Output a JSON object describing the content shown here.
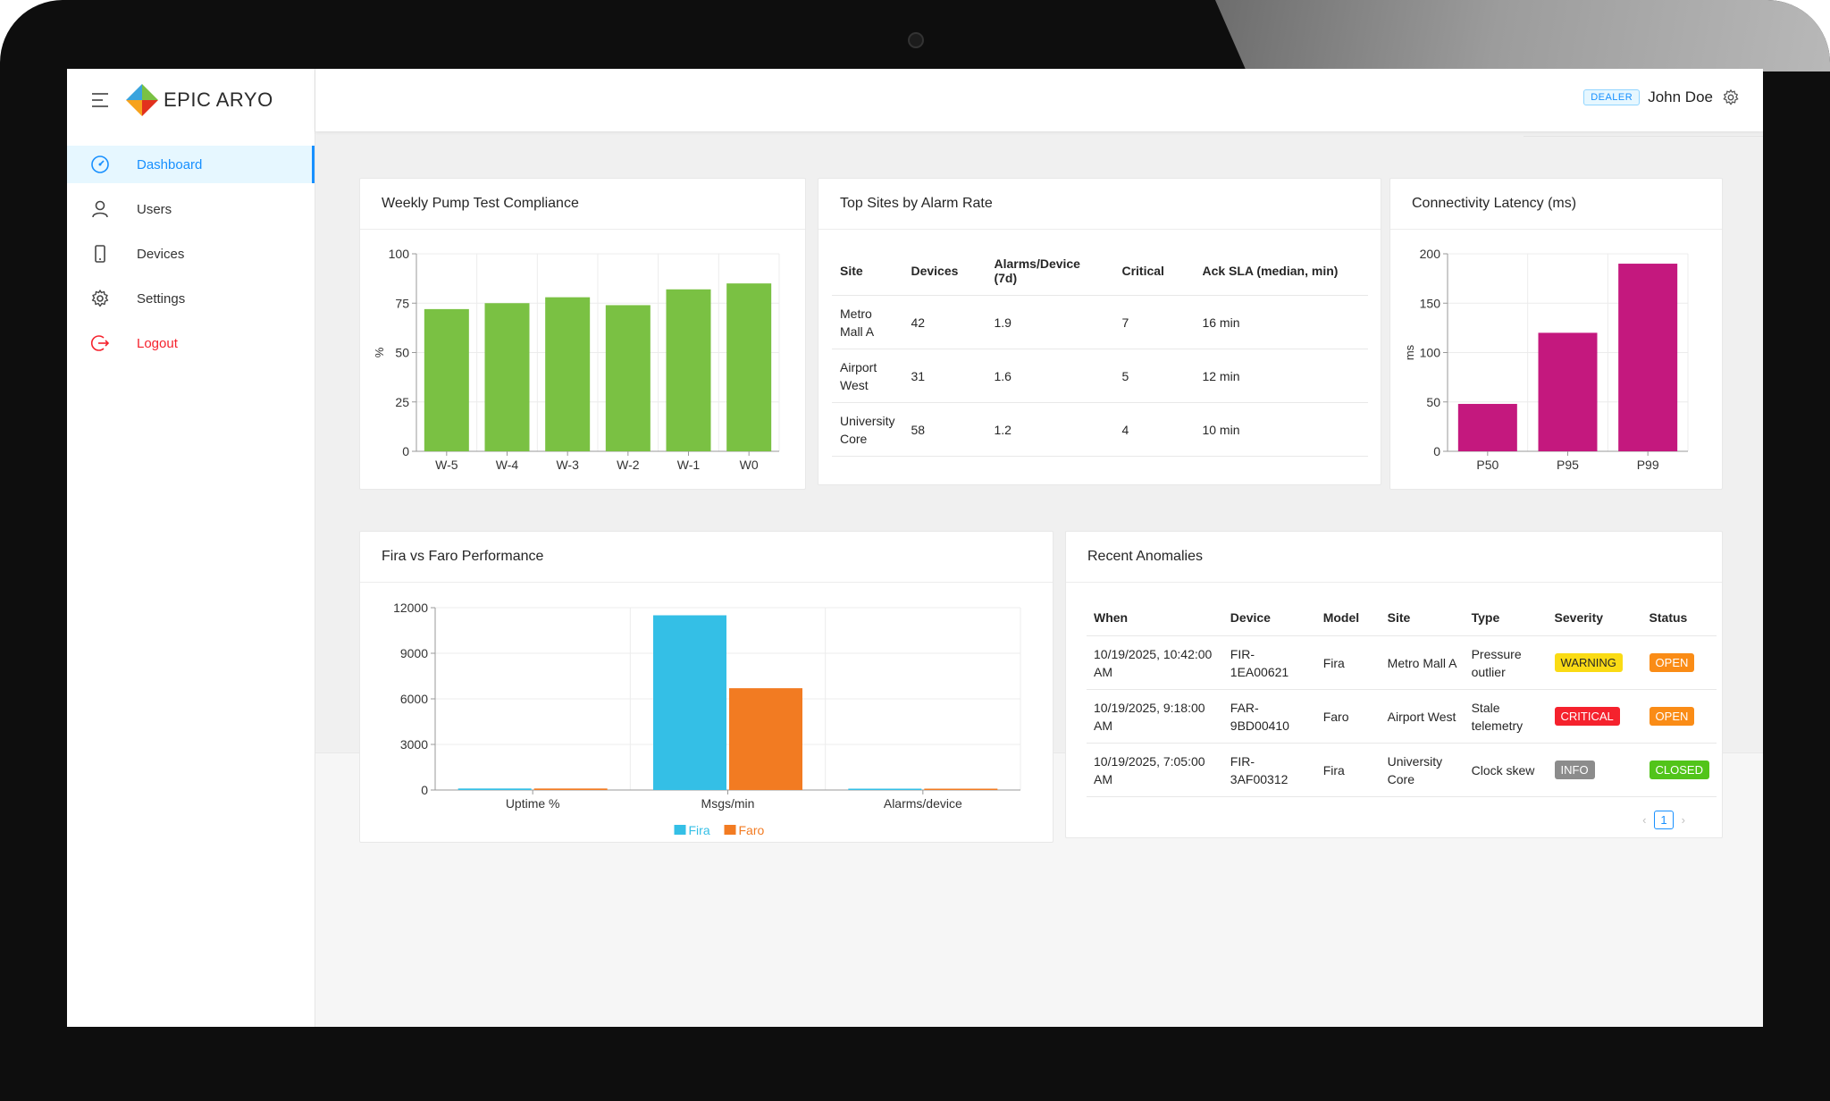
{
  "brand": {
    "name": "EPIC ARYO"
  },
  "sidebar": {
    "items": [
      {
        "label": "Dashboard",
        "icon": "dashboard-icon"
      },
      {
        "label": "Users",
        "icon": "user-icon"
      },
      {
        "label": "Devices",
        "icon": "device-icon"
      },
      {
        "label": "Settings",
        "icon": "gear-icon"
      },
      {
        "label": "Logout",
        "icon": "logout-icon"
      }
    ],
    "active": "Dashboard"
  },
  "header": {
    "role_badge": "DEALER",
    "user_name": "John Doe"
  },
  "colors": {
    "accent": "#1890ff",
    "green": "#7ac143",
    "magenta": "#c4187e",
    "fira": "#34bfe6",
    "faro": "#f27b22",
    "warning": "#fadb14",
    "critical": "#f5222d",
    "open": "#fa8c16",
    "info": "#8c8c8c",
    "closed": "#52c41a"
  },
  "cards": {
    "pump": {
      "title": "Weekly Pump Test Compliance"
    },
    "sites": {
      "title": "Top Sites by Alarm Rate"
    },
    "latency": {
      "title": "Connectivity Latency (ms)"
    },
    "fira": {
      "title": "Fira vs Faro Performance"
    },
    "anomalies": {
      "title": "Recent Anomalies"
    }
  },
  "sites_table": {
    "headers": [
      "Site",
      "Devices",
      "Alarms/Device (7d)",
      "Critical",
      "Ack SLA (median, min)"
    ],
    "rows": [
      [
        "Metro Mall A",
        "42",
        "1.9",
        "7",
        "16 min"
      ],
      [
        "Airport West",
        "31",
        "1.6",
        "5",
        "12 min"
      ],
      [
        "University Core",
        "58",
        "1.2",
        "4",
        "10 min"
      ]
    ]
  },
  "anomalies_table": {
    "headers": [
      "When",
      "Device",
      "Model",
      "Site",
      "Type",
      "Severity",
      "Status"
    ],
    "rows": [
      [
        "10/19/2025, 10:42:00 AM",
        "FIR-1EA00621",
        "Fira",
        "Metro Mall A",
        "Pressure outlier",
        "WARNING",
        "OPEN"
      ],
      [
        "10/19/2025, 9:18:00 AM",
        "FAR-9BD00410",
        "Faro",
        "Airport West",
        "Stale telemetry",
        "CRITICAL",
        "OPEN"
      ],
      [
        "10/19/2025, 7:05:00 AM",
        "FIR-3AF00312",
        "Fira",
        "University Core",
        "Clock skew",
        "INFO",
        "CLOSED"
      ]
    ]
  },
  "pagination": {
    "current": "1"
  },
  "chart_data": [
    {
      "type": "bar",
      "title": "Weekly Pump Test Compliance",
      "categories": [
        "W-5",
        "W-4",
        "W-3",
        "W-2",
        "W-1",
        "W0"
      ],
      "values": [
        72,
        75,
        78,
        74,
        82,
        85
      ],
      "ylabel": "%",
      "ylim": [
        0,
        100
      ],
      "yticks": [
        0,
        25,
        50,
        75,
        100
      ],
      "color": "#7ac143"
    },
    {
      "type": "bar",
      "title": "Connectivity Latency (ms)",
      "categories": [
        "P50",
        "P95",
        "P99"
      ],
      "values": [
        48,
        120,
        190
      ],
      "ylabel": "ms",
      "ylim": [
        0,
        200
      ],
      "yticks": [
        0,
        50,
        100,
        150,
        200
      ],
      "color": "#c4187e"
    },
    {
      "type": "bar",
      "title": "Fira vs Faro Performance",
      "categories": [
        "Uptime %",
        "Msgs/min",
        "Alarms/device"
      ],
      "series": [
        {
          "name": "Fira",
          "values": [
            99.2,
            11500,
            1.5
          ],
          "color": "#34bfe6"
        },
        {
          "name": "Faro",
          "values": [
            98.5,
            6700,
            1.8
          ],
          "color": "#f27b22"
        }
      ],
      "ylim": [
        0,
        12000
      ],
      "yticks": [
        0,
        3000,
        6000,
        9000,
        12000
      ],
      "legend": "bottom"
    }
  ]
}
